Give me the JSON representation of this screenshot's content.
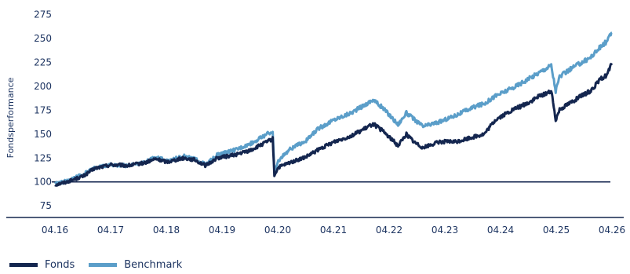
{
  "colors": {
    "fonds": "#14264f",
    "benchmark": "#5b9ec9",
    "axis": "#14264f",
    "text": "#1d3461"
  },
  "chart_data": {
    "type": "line",
    "ylabel": "Fondsperformance",
    "xlabel": "",
    "yticks": [
      75,
      100,
      125,
      150,
      175,
      200,
      225,
      250,
      275
    ],
    "ylim": [
      62,
      282
    ],
    "xticks": [
      "04.16",
      "04.17",
      "04.18",
      "04.19",
      "04.20",
      "04.21",
      "04.22",
      "04.23",
      "04.24",
      "04.25",
      "04.26"
    ],
    "xlim": [
      2016.29,
      2026.29
    ],
    "reference_line": 100,
    "grid": false,
    "legend_position": "bottom-left",
    "series": [
      {
        "name": "Fonds",
        "color": "#14264f",
        "x": [
          2016.29,
          2016.5,
          2016.8,
          2017.0,
          2017.3,
          2017.6,
          2017.9,
          2018.1,
          2018.3,
          2018.6,
          2018.8,
          2019.0,
          2019.2,
          2019.5,
          2019.8,
          2020.1,
          2020.2,
          2020.23,
          2020.3,
          2020.5,
          2020.8,
          2021.0,
          2021.3,
          2021.6,
          2021.9,
          2022.0,
          2022.2,
          2022.45,
          2022.6,
          2022.75,
          2022.9,
          2023.2,
          2023.5,
          2023.8,
          2024.0,
          2024.2,
          2024.5,
          2024.8,
          2025.0,
          2025.2,
          2025.28,
          2025.35,
          2025.6,
          2025.9,
          2026.1,
          2026.2,
          2026.29
        ],
        "values": [
          97,
          100,
          106,
          114,
          118,
          117,
          120,
          124,
          121,
          125,
          123,
          117,
          125,
          128,
          133,
          142,
          145,
          107,
          115,
          120,
          126,
          133,
          142,
          148,
          157,
          161,
          152,
          138,
          150,
          141,
          136,
          142,
          142,
          147,
          150,
          165,
          175,
          183,
          190,
          195,
          165,
          176,
          185,
          195,
          208,
          212,
          224
        ]
      },
      {
        "name": "Benchmark",
        "color": "#5b9ec9",
        "x": [
          2016.29,
          2016.5,
          2016.8,
          2017.0,
          2017.3,
          2017.6,
          2017.9,
          2018.1,
          2018.3,
          2018.6,
          2018.8,
          2019.0,
          2019.2,
          2019.5,
          2019.8,
          2020.1,
          2020.2,
          2020.23,
          2020.3,
          2020.5,
          2020.8,
          2021.0,
          2021.3,
          2021.6,
          2021.9,
          2022.0,
          2022.2,
          2022.45,
          2022.6,
          2022.75,
          2022.9,
          2023.2,
          2023.5,
          2023.8,
          2024.0,
          2024.2,
          2024.5,
          2024.8,
          2025.0,
          2025.2,
          2025.28,
          2025.35,
          2025.6,
          2025.9,
          2026.1,
          2026.2,
          2026.29
        ],
        "values": [
          98,
          101,
          108,
          115,
          118,
          117,
          121,
          126,
          122,
          127,
          124,
          118,
          128,
          133,
          140,
          150,
          153,
          110,
          122,
          134,
          143,
          155,
          165,
          172,
          182,
          186,
          176,
          160,
          172,
          165,
          158,
          163,
          170,
          178,
          182,
          190,
          198,
          208,
          215,
          222,
          195,
          210,
          220,
          230,
          242,
          247,
          256
        ]
      }
    ]
  }
}
